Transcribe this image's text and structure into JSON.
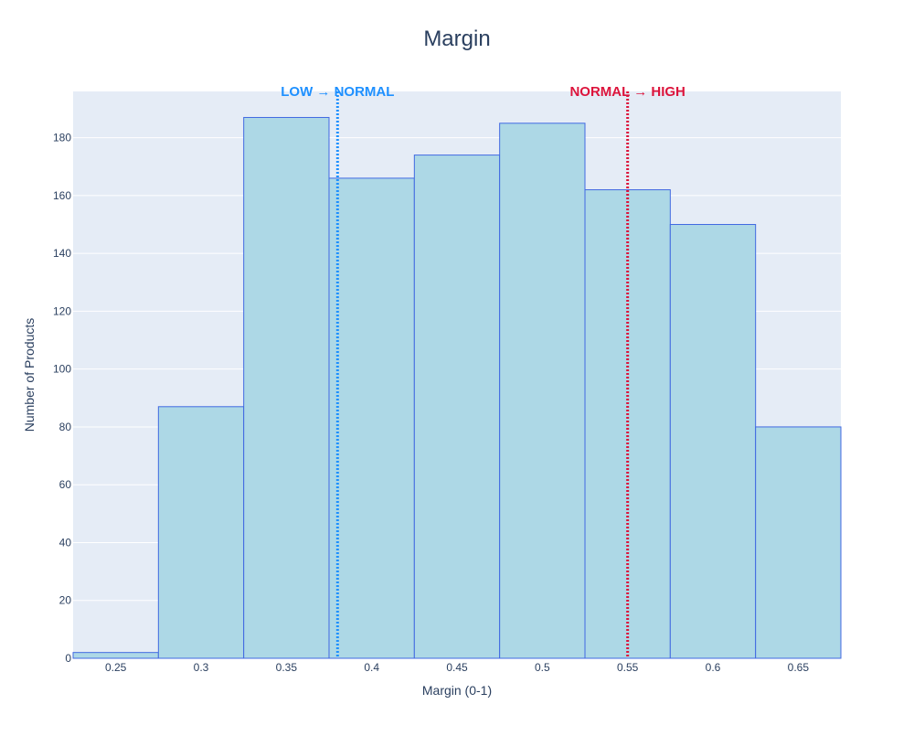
{
  "chart_data": {
    "type": "bar",
    "title": "Margin",
    "xlabel": "Margin (0-1)",
    "ylabel": "Number of Products",
    "xlim": [
      0.225,
      0.675
    ],
    "ylim": [
      0,
      196
    ],
    "bin_width": 0.05,
    "bins": [
      {
        "start": 0.225,
        "end": 0.275,
        "count": 2
      },
      {
        "start": 0.275,
        "end": 0.325,
        "count": 87
      },
      {
        "start": 0.325,
        "end": 0.375,
        "count": 187
      },
      {
        "start": 0.375,
        "end": 0.425,
        "count": 166
      },
      {
        "start": 0.425,
        "end": 0.475,
        "count": 174
      },
      {
        "start": 0.475,
        "end": 0.525,
        "count": 185
      },
      {
        "start": 0.525,
        "end": 0.575,
        "count": 162
      },
      {
        "start": 0.575,
        "end": 0.625,
        "count": 150
      },
      {
        "start": 0.625,
        "end": 0.675,
        "count": 80
      }
    ],
    "x_ticks": [
      {
        "value": 0.25,
        "label": "0.25"
      },
      {
        "value": 0.3,
        "label": "0.3"
      },
      {
        "value": 0.35,
        "label": "0.35"
      },
      {
        "value": 0.4,
        "label": "0.4"
      },
      {
        "value": 0.45,
        "label": "0.45"
      },
      {
        "value": 0.5,
        "label": "0.5"
      },
      {
        "value": 0.55,
        "label": "0.55"
      },
      {
        "value": 0.6,
        "label": "0.6"
      },
      {
        "value": 0.65,
        "label": "0.65"
      }
    ],
    "y_ticks": [
      {
        "value": 0,
        "label": "0"
      },
      {
        "value": 20,
        "label": "20"
      },
      {
        "value": 40,
        "label": "40"
      },
      {
        "value": 60,
        "label": "60"
      },
      {
        "value": 80,
        "label": "80"
      },
      {
        "value": 100,
        "label": "100"
      },
      {
        "value": 120,
        "label": "120"
      },
      {
        "value": 140,
        "label": "140"
      },
      {
        "value": 160,
        "label": "160"
      },
      {
        "value": 180,
        "label": "180"
      }
    ],
    "thresholds": [
      {
        "label": "LOW → NORMAL",
        "value": 0.38,
        "color": "#1e90ff"
      },
      {
        "label": "NORMAL → HIGH",
        "value": 0.55,
        "color": "#dc143c"
      }
    ],
    "grid": true,
    "colors": {
      "bar_fill": "#add8e6",
      "bar_stroke": "#4169e1",
      "plot_background": "#e5ecf6",
      "grid": "#ffffff",
      "text": "#2a3f5f",
      "tick_text": "#2a3f5f"
    }
  }
}
